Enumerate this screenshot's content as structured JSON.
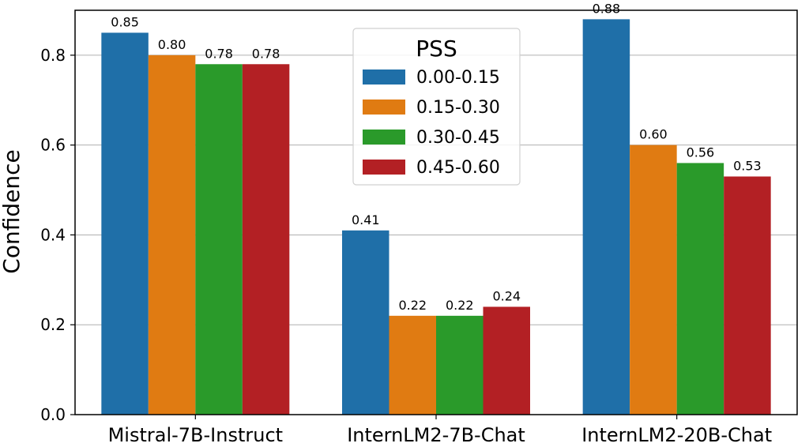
{
  "chart_data": {
    "type": "bar",
    "ylabel": "Confidence",
    "xlabel": "",
    "title": "",
    "ylim": [
      0,
      0.9
    ],
    "yticks": [
      "0.0",
      "0.2",
      "0.4",
      "0.6",
      "0.8"
    ],
    "grid": "horizontal",
    "categories": [
      "Mistral-7B-Instruct",
      "InternLM2-7B-Chat",
      "InternLM2-20B-Chat"
    ],
    "legend": {
      "title": "PSS",
      "placement": "top-center"
    },
    "series": [
      {
        "name": "0.00-0.15",
        "color": "#1f6fa8",
        "values": [
          0.85,
          0.41,
          0.88
        ],
        "labels": [
          "0.85",
          "0.41",
          "0.88"
        ]
      },
      {
        "name": "0.15-0.30",
        "color": "#e07b12",
        "values": [
          0.8,
          0.22,
          0.6
        ],
        "labels": [
          "0.80",
          "0.22",
          "0.60"
        ]
      },
      {
        "name": "0.30-0.45",
        "color": "#2a9a2a",
        "values": [
          0.78,
          0.22,
          0.56
        ],
        "labels": [
          "0.78",
          "0.22",
          "0.56"
        ]
      },
      {
        "name": "0.45-0.60",
        "color": "#b32024",
        "values": [
          0.78,
          0.24,
          0.53
        ],
        "labels": [
          "0.78",
          "0.24",
          "0.53"
        ]
      }
    ]
  }
}
